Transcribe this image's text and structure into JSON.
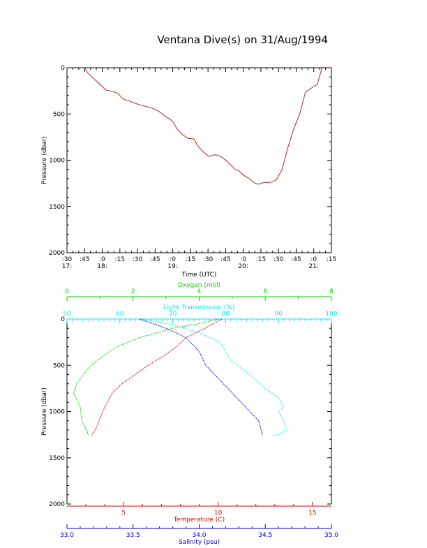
{
  "title": "Ventana Dive(s) on 31/Aug/1994",
  "colors": {
    "axis": "#000000",
    "depth": "#b22222",
    "oxygen": "#00cc00",
    "light": "#00e5ee",
    "temperature": "#dd0000",
    "salinity": "#0000cc"
  },
  "chart_data": [
    {
      "type": "line",
      "title": "Ventana Dive(s) on 31/Aug/1994",
      "xlabel": "Time (UTC)",
      "ylabel": "Pressure (dbar)",
      "yreversed": true,
      "xlim": [
        "17:30",
        "21:15"
      ],
      "ylim": [
        0,
        2000
      ],
      "x_major_ticks": [
        {
          "time": "17:30",
          "label": ":30",
          "hour": "17:"
        },
        {
          "time": "17:45",
          "label": ":45",
          "hour": ""
        },
        {
          "time": "18:00",
          "label": ":0",
          "hour": "18:"
        },
        {
          "time": "18:15",
          "label": ":15",
          "hour": ""
        },
        {
          "time": "18:30",
          "label": ":30",
          "hour": ""
        },
        {
          "time": "18:45",
          "label": ":45",
          "hour": ""
        },
        {
          "time": "19:00",
          "label": ":0",
          "hour": "19:"
        },
        {
          "time": "19:15",
          "label": ":15",
          "hour": ""
        },
        {
          "time": "19:30",
          "label": ":30",
          "hour": ""
        },
        {
          "time": "19:45",
          "label": ":45",
          "hour": ""
        },
        {
          "time": "20:00",
          "label": ":0",
          "hour": "20:"
        },
        {
          "time": "20:15",
          "label": ":15",
          "hour": ""
        },
        {
          "time": "20:30",
          "label": ":30",
          "hour": ""
        },
        {
          "time": "20:45",
          "label": ":45",
          "hour": ""
        },
        {
          "time": "21:00",
          "label": ":0",
          "hour": "21:"
        },
        {
          "time": "21:15",
          "label": ":15",
          "hour": ""
        }
      ],
      "y_ticks": [
        0,
        500,
        1000,
        1500,
        2000
      ],
      "series": [
        {
          "key": "depth",
          "x": [
            "17:45",
            "17:48",
            "17:53",
            "17:58",
            "18:03",
            "18:08",
            "18:13",
            "18:18",
            "18:23",
            "18:28",
            "18:33",
            "18:38",
            "18:43",
            "18:48",
            "18:53",
            "18:58",
            "19:01",
            "19:03",
            "19:08",
            "19:13",
            "19:18",
            "19:21",
            "19:26",
            "19:31",
            "19:36",
            "19:41",
            "19:46",
            "19:50",
            "19:53",
            "19:56",
            "20:00",
            "20:05",
            "20:10",
            "20:13",
            "20:18",
            "20:23",
            "20:28",
            "20:33",
            "20:38",
            "20:43",
            "20:48",
            "20:53",
            "20:58",
            "21:03",
            "21:07"
          ],
          "y": [
            0,
            60,
            120,
            180,
            240,
            255,
            275,
            340,
            360,
            385,
            405,
            420,
            440,
            470,
            520,
            560,
            600,
            650,
            720,
            765,
            770,
            840,
            910,
            960,
            940,
            960,
            1010,
            1060,
            1100,
            1110,
            1160,
            1200,
            1250,
            1260,
            1240,
            1240,
            1215,
            1100,
            860,
            660,
            500,
            260,
            220,
            180,
            0
          ]
        }
      ]
    },
    {
      "type": "line",
      "ylabel": "Pressure (dbar)",
      "yreversed": true,
      "ylim": [
        0,
        2000
      ],
      "y_ticks": [
        0,
        500,
        1000,
        1500,
        2000
      ],
      "axes": [
        {
          "key": "oxygen",
          "label": "Oxygen (ml/l)",
          "position": "top",
          "range": [
            0,
            8
          ],
          "ticks": [
            0,
            2,
            4,
            6,
            8
          ],
          "minor": [
            1,
            3,
            5,
            7
          ]
        },
        {
          "key": "light",
          "label": "Light Transmission (%)",
          "position": "top",
          "range": [
            50,
            100
          ],
          "ticks": [
            50,
            60,
            70,
            80,
            90,
            100
          ]
        },
        {
          "key": "temperature",
          "label": "Temperature (C)",
          "position": "bottom",
          "range": [
            2,
            16
          ],
          "ticks": [
            5,
            10,
            15
          ],
          "minor": [
            3,
            4,
            6,
            7,
            8,
            9,
            11,
            12,
            13,
            14
          ]
        },
        {
          "key": "salinity",
          "label": "Salinity (psu)",
          "position": "bottom",
          "range": [
            33.0,
            35.0
          ],
          "ticks": [
            33.0,
            33.5,
            34.0,
            34.5,
            35.0
          ],
          "tick_labels": [
            "33.0",
            "33.5",
            "34.0",
            "34.5",
            "35.0"
          ]
        }
      ],
      "series": [
        {
          "key": "oxygen",
          "axis": "oxygen",
          "x": [
            4.6,
            4.0,
            3.2,
            2.2,
            1.5,
            0.9,
            0.6,
            0.3,
            0.2,
            0.4,
            0.45,
            0.6,
            0.65
          ],
          "y": [
            0,
            50,
            100,
            200,
            300,
            450,
            550,
            700,
            800,
            950,
            1100,
            1200,
            1260
          ]
        },
        {
          "key": "temperature",
          "axis": "temperature",
          "x": [
            10.2,
            9.3,
            8.3,
            7.8,
            7.1,
            6.3,
            5.6,
            4.9,
            4.4,
            4.0,
            3.7,
            3.5,
            3.3
          ],
          "y": [
            0,
            100,
            200,
            300,
            400,
            500,
            600,
            700,
            800,
            950,
            1100,
            1200,
            1260
          ]
        },
        {
          "key": "salinity",
          "axis": "salinity",
          "x": [
            33.55,
            33.75,
            33.9,
            34.0,
            34.05,
            34.15,
            34.25,
            34.35,
            34.45,
            34.48
          ],
          "y": [
            0,
            100,
            200,
            350,
            500,
            650,
            800,
            950,
            1100,
            1260
          ]
        },
        {
          "key": "light",
          "axis": "light",
          "x": [
            64,
            70,
            75,
            79,
            80,
            81,
            83.5,
            85.5,
            87.5,
            90,
            91,
            90,
            91,
            91.5,
            90.5,
            89
          ],
          "y": [
            0,
            60,
            150,
            250,
            350,
            450,
            550,
            650,
            750,
            850,
            950,
            1000,
            1100,
            1200,
            1240,
            1260
          ]
        }
      ]
    }
  ]
}
